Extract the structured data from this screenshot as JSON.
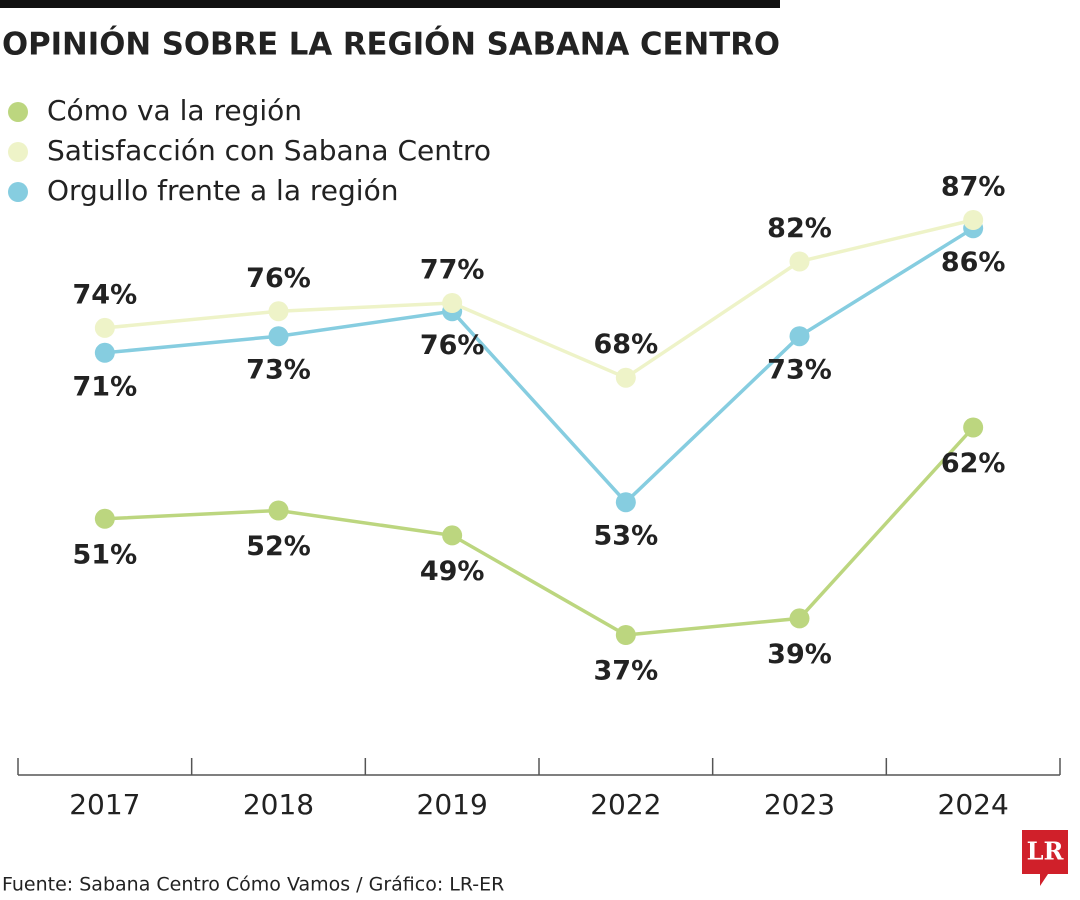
{
  "chart_data": {
    "type": "line",
    "title": "OPINIÓN SOBRE LA REGIÓN SABANA CENTRO",
    "categories": [
      "2017",
      "2018",
      "2019",
      "2022",
      "2023",
      "2024"
    ],
    "series": [
      {
        "name": "Cómo va la región",
        "color": "#bcd67f",
        "values": [
          51,
          52,
          49,
          37,
          39,
          62
        ],
        "value_labels": [
          "51%",
          "52%",
          "49%",
          "37%",
          "39%",
          "62%"
        ]
      },
      {
        "name": "Satisfacción con Sabana Centro",
        "color": "#eef3c8",
        "values": [
          74,
          76,
          77,
          68,
          82,
          87
        ],
        "value_labels": [
          "74%",
          "76%",
          "77%",
          "68%",
          "82%",
          "87%"
        ]
      },
      {
        "name": "Orgullo frente a la región",
        "color": "#86cde0",
        "values": [
          71,
          73,
          76,
          53,
          73,
          86
        ],
        "value_labels": [
          "71%",
          "73%",
          "76%",
          "53%",
          "73%",
          "86%"
        ]
      }
    ],
    "source": "Fuente: Sabana Centro Cómo Vamos / Gráfico: LR-ER",
    "logo": "LR"
  }
}
